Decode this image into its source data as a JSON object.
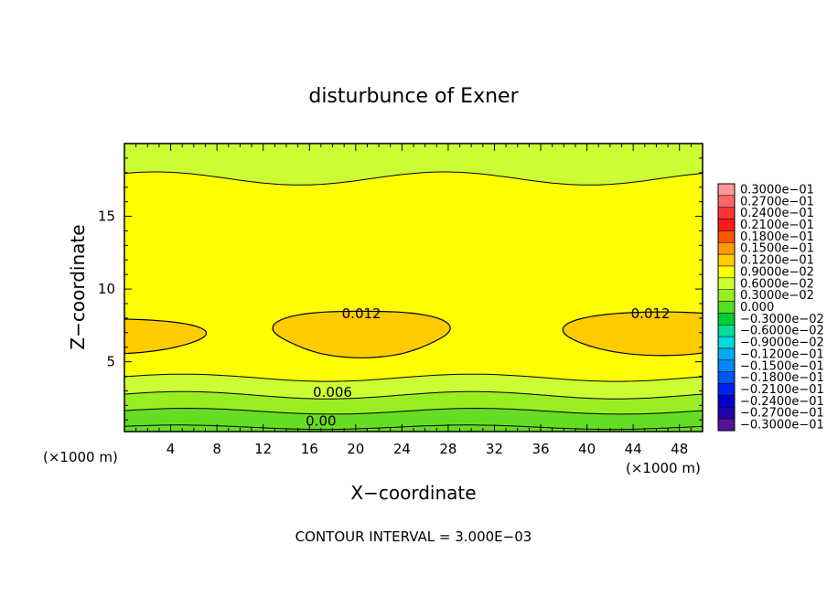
{
  "chart_data": {
    "type": "heatmap",
    "title": "disturbunce of Exner",
    "xlabel": "X−coordinate",
    "ylabel": "Z−coordinate",
    "x_unit_left": "(×1000 m)",
    "x_unit_right": "(×1000 m)",
    "footer": "CONTOUR INTERVAL = 3.000E−03",
    "xlim": [
      0,
      50
    ],
    "ylim": [
      0.2,
      20
    ],
    "x_ticks": [
      "4",
      "8",
      "12",
      "16",
      "20",
      "24",
      "28",
      "32",
      "36",
      "40",
      "44",
      "48"
    ],
    "y_ticks": [
      "5",
      "10",
      "15"
    ],
    "grid": false,
    "legend_position": "right",
    "contour_labels": [
      {
        "text": "0.012",
        "x": 20.5,
        "z": 8.0
      },
      {
        "text": "0.012",
        "x": 45.5,
        "z": 8.0
      },
      {
        "text": "0.006",
        "x": 18.0,
        "z": 2.6
      },
      {
        "text": "0.00",
        "x": 17.0,
        "z": 0.6
      }
    ],
    "contour_levels": [
      0.0,
      0.003,
      0.006,
      0.009,
      0.012
    ],
    "colorbar": [
      {
        "label": "0.3000e−01",
        "color": "#ff9999"
      },
      {
        "label": "0.2700e−01",
        "color": "#ff6666"
      },
      {
        "label": "0.2400e−01",
        "color": "#ff3333"
      },
      {
        "label": "0.2100e−01",
        "color": "#ff1a1a"
      },
      {
        "label": "0.1800e−01",
        "color": "#ff5500"
      },
      {
        "label": "0.1500e−01",
        "color": "#ff9900"
      },
      {
        "label": "0.1200e−01",
        "color": "#ffcc00"
      },
      {
        "label": "0.9000e−02",
        "color": "#ffff00"
      },
      {
        "label": "0.6000e−02",
        "color": "#ccff33"
      },
      {
        "label": "0.3000e−02",
        "color": "#99ee22"
      },
      {
        "label": "0.000",
        "color": "#55dd22"
      },
      {
        "label": "−0.3000e−02",
        "color": "#00cc33"
      },
      {
        "label": "−0.6000e−02",
        "color": "#00dd99"
      },
      {
        "label": "−0.9000e−02",
        "color": "#00dddd"
      },
      {
        "label": "−0.1200e−01",
        "color": "#00aaee"
      },
      {
        "label": "−0.1500e−01",
        "color": "#0088ff"
      },
      {
        "label": "−0.1800e−01",
        "color": "#0055ff"
      },
      {
        "label": "−0.2100e−01",
        "color": "#0022ee"
      },
      {
        "label": "−0.2400e−01",
        "color": "#0000cc"
      },
      {
        "label": "−0.2700e−01",
        "color": "#2200aa"
      },
      {
        "label": "−0.3000e−01",
        "color": "#551199"
      }
    ],
    "colors": {
      "band_low": "#66dd22",
      "band_mid_low": "#99ee22",
      "band_mid": "#ccff33",
      "band_high": "#ffff00",
      "band_peak": "#ffcc00"
    }
  }
}
